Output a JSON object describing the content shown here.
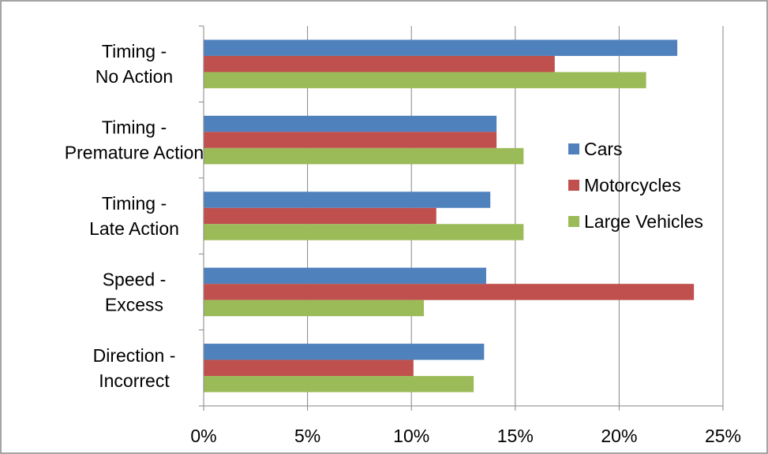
{
  "chart_data": {
    "type": "bar",
    "orientation": "horizontal",
    "categories": [
      [
        "Timing -",
        "No Action"
      ],
      [
        "Timing -",
        "Premature Action"
      ],
      [
        "Timing -",
        "Late Action"
      ],
      [
        "Speed -",
        "Excess"
      ],
      [
        "Direction -",
        "Incorrect"
      ]
    ],
    "series": [
      {
        "name": "Cars",
        "color": "#4F81BD",
        "values": [
          22.8,
          14.1,
          13.8,
          13.6,
          13.5
        ]
      },
      {
        "name": "Motorcycles",
        "color": "#C0504D",
        "values": [
          16.9,
          14.1,
          11.2,
          23.6,
          10.1
        ]
      },
      {
        "name": "Large Vehicles",
        "color": "#9BBB59",
        "values": [
          21.3,
          15.4,
          15.4,
          10.6,
          13.0
        ]
      }
    ],
    "x_ticks": [
      "0%",
      "5%",
      "10%",
      "15%",
      "20%",
      "25%"
    ],
    "xlim": [
      0,
      25
    ],
    "grid": true,
    "legend_position": "right"
  }
}
